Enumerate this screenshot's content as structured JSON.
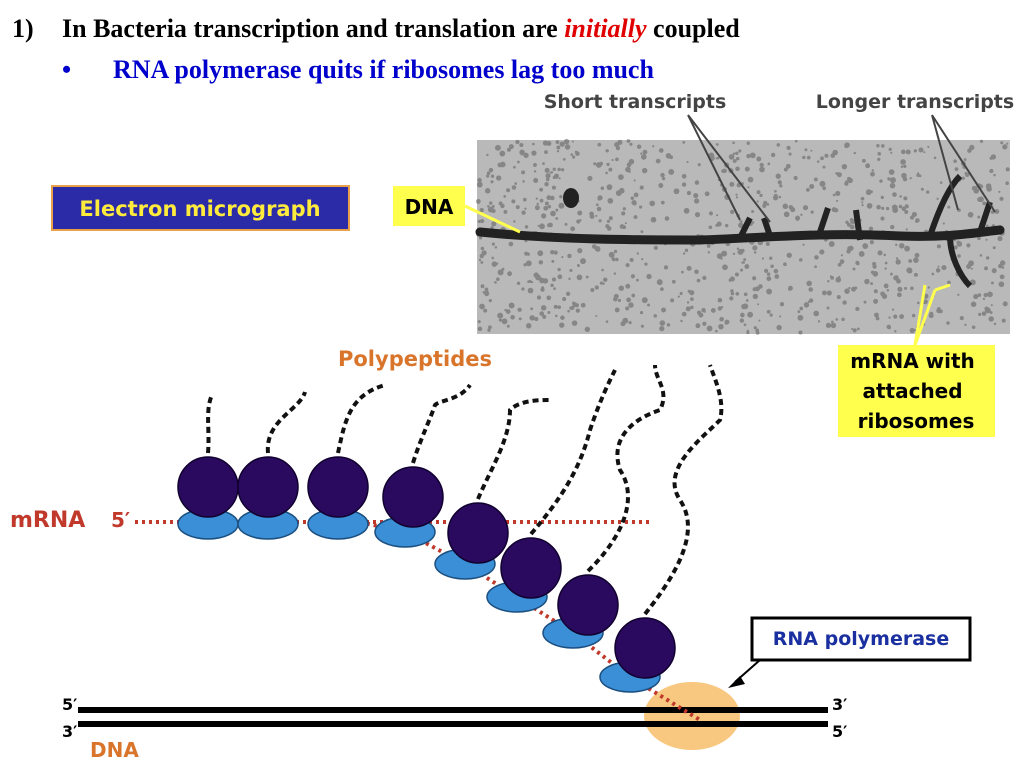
{
  "heading": {
    "number": "1)",
    "text_before": "In Bacteria transcription and translation are ",
    "emphasis": "initially",
    "text_after": " coupled"
  },
  "bullet": {
    "marker": "•",
    "text": "RNA polymerase quits if ribosomes lag too much"
  },
  "micrograph": {
    "label_short": "Short transcripts",
    "label_long": "Longer transcripts",
    "caption": "Electron micrograph",
    "dna_label": "DNA",
    "mrna_label": [
      "mRNA with",
      "attached",
      "ribosomes"
    ]
  },
  "diagram": {
    "polypeptides": "Polypeptides",
    "mrna": "mRNA",
    "mrna_end": "5′",
    "polymerase": "RNA polymerase",
    "dna_top_left": "5′",
    "dna_bottom_left": "3′",
    "dna_top_right": "3′",
    "dna_bottom_right": "5′",
    "dna": "DNA"
  }
}
